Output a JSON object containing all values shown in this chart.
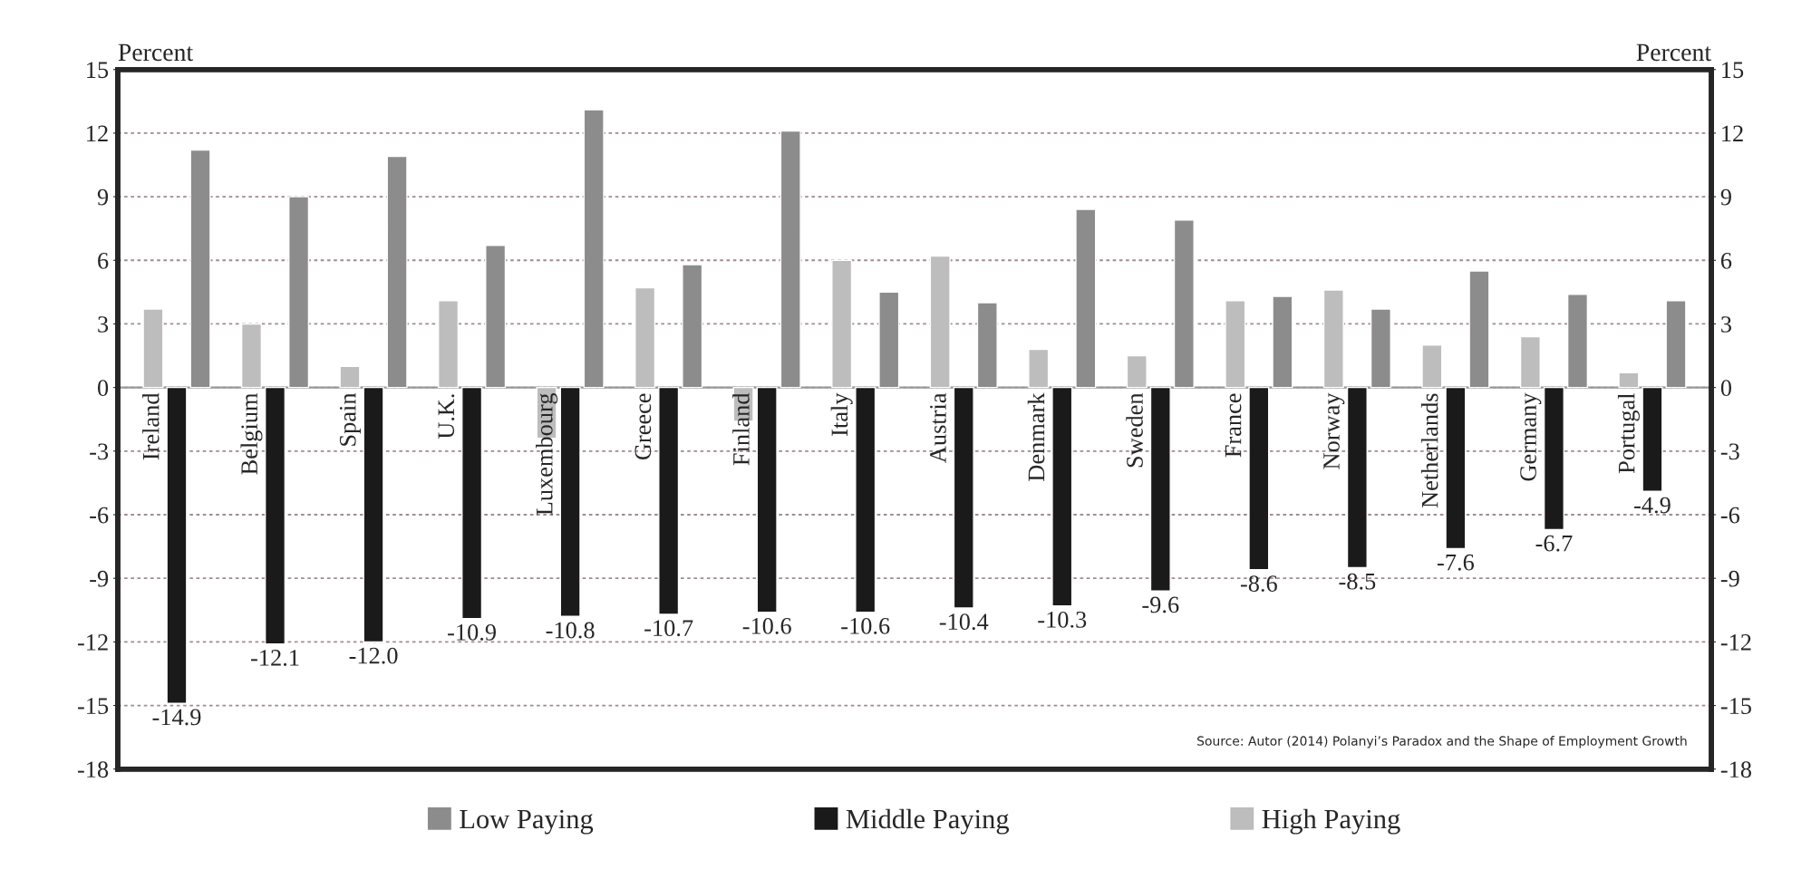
{
  "chart_data": {
    "type": "bar",
    "categories": [
      "Ireland",
      "Belgium",
      "Spain",
      "U.K.",
      "Luxembourg",
      "Greece",
      "Finland",
      "Italy",
      "Austria",
      "Denmark",
      "Sweden",
      "France",
      "Norway",
      "Netherlands",
      "Germany",
      "Portugal"
    ],
    "series": [
      {
        "name": "Low Paying",
        "color": "#8c8c8c",
        "values": [
          11.2,
          9.0,
          10.9,
          6.7,
          13.1,
          5.8,
          12.1,
          4.5,
          4.0,
          8.4,
          7.9,
          4.3,
          3.7,
          5.5,
          4.4,
          4.1
        ]
      },
      {
        "name": "Middle Paying",
        "color": "#1a1a1a",
        "values": [
          -14.9,
          -12.1,
          -12.0,
          -10.9,
          -10.8,
          -10.7,
          -10.6,
          -10.6,
          -10.4,
          -10.3,
          -9.6,
          -8.6,
          -8.5,
          -7.6,
          -6.7,
          -4.9
        ],
        "value_labels": [
          "-14.9",
          "-12.1",
          "-12.0",
          "-10.9",
          "-10.8",
          "-10.7",
          "-10.6",
          "-10.6",
          "-10.4",
          "-10.3",
          "-9.6",
          "-8.6",
          "-8.5",
          "-7.6",
          "-6.7",
          "-4.9"
        ]
      },
      {
        "name": "High Paying",
        "color": "#bdbdbd",
        "values": [
          3.7,
          3.0,
          1.0,
          4.1,
          -2.4,
          4.7,
          -1.6,
          6.0,
          6.2,
          1.8,
          1.5,
          4.1,
          4.6,
          2.0,
          2.4,
          0.7
        ]
      }
    ],
    "ylabel": "Percent",
    "y2label": "Percent",
    "ylim": [
      -18,
      15
    ],
    "yticks": [
      -18,
      -15,
      -12,
      -9,
      -6,
      -3,
      0,
      3,
      6,
      9,
      12,
      15
    ],
    "y2lim": [
      -18,
      15
    ],
    "y2ticks": [
      -18,
      -15,
      -12,
      -9,
      -6,
      -3,
      0,
      3,
      6,
      9,
      12,
      15
    ],
    "grid": "y",
    "legend": "bottom",
    "annotations": [
      "Source: Autor (2014) Polanyi’s Paradox and the Shape of Employment Growth"
    ]
  }
}
